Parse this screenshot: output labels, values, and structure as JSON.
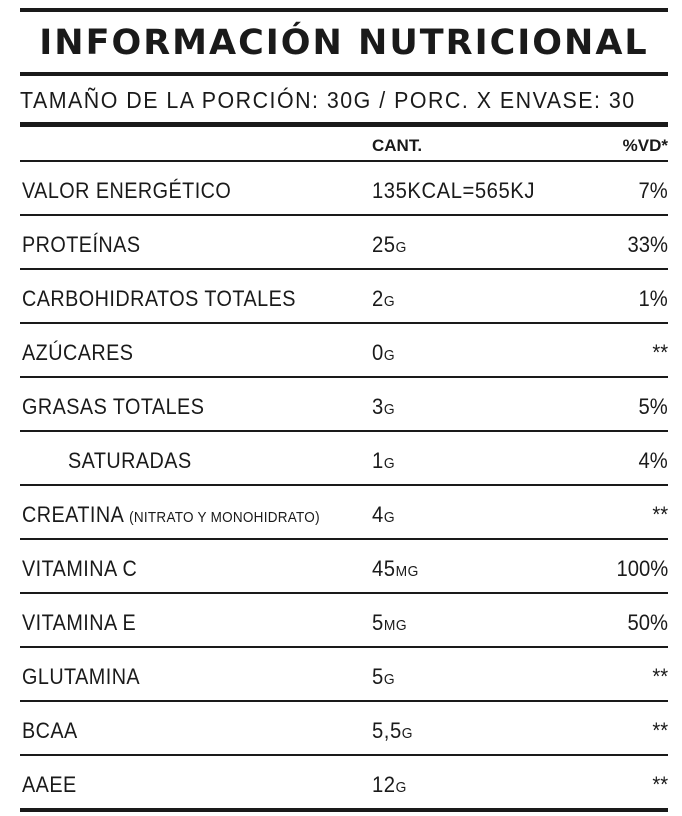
{
  "title": "INFORMACIÓN NUTRICIONAL",
  "serving": "TAMAÑO DE LA PORCIÓN: 30G / PORC. X ENVASE: 30",
  "headers": {
    "amount": "CANT.",
    "dv": "%VD*"
  },
  "rows": [
    {
      "name": "VALOR ENERGÉTICO",
      "note": "",
      "amount": "135KCAL=565KJ",
      "unit": "",
      "dv": "7%"
    },
    {
      "name": "PROTEÍNAS",
      "note": "",
      "amount": "25",
      "unit": "G",
      "dv": "33%"
    },
    {
      "name": "CARBOHIDRATOS  TOTALES",
      "note": "",
      "amount": "2",
      "unit": "G",
      "dv": "1%"
    },
    {
      "name": "AZÚCARES",
      "note": "",
      "amount": "0",
      "unit": "G",
      "dv": "**"
    },
    {
      "name": "GRASAS TOTALES",
      "note": "",
      "amount": "3",
      "unit": "G",
      "dv": "5%"
    },
    {
      "name": "SATURADAS",
      "note": "",
      "amount": "1",
      "unit": "G",
      "dv": "4%"
    },
    {
      "name": "CREATINA",
      "note": "(NITRATO Y MONOHIDRATO)",
      "amount": "4",
      "unit": "G",
      "dv": "**"
    },
    {
      "name": "VITAMINA C",
      "note": "",
      "amount": "45",
      "unit": "MG",
      "dv": "100%"
    },
    {
      "name": "VITAMINA E",
      "note": "",
      "amount": "5",
      "unit": "MG",
      "dv": "50%"
    },
    {
      "name": "GLUTAMINA",
      "note": "",
      "amount": "5",
      "unit": "G",
      "dv": "**"
    },
    {
      "name": "BCAA",
      "note": "",
      "amount": "5,5",
      "unit": "G",
      "dv": "**"
    },
    {
      "name": "AAEE",
      "note": "",
      "amount": "12",
      "unit": "G",
      "dv": "**"
    }
  ]
}
